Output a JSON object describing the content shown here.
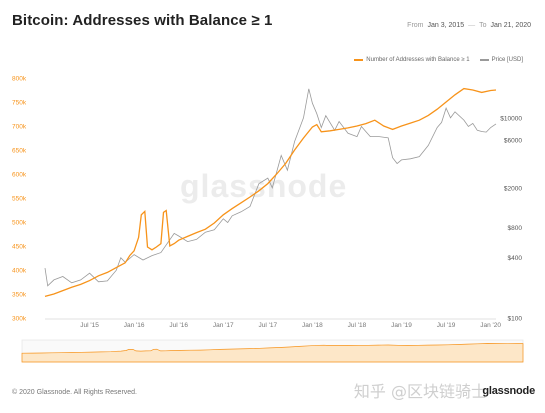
{
  "title": "Bitcoin: Addresses with Balance ≥ 1",
  "date_range": {
    "from_label": "From",
    "from_value": "Jan 3, 2015",
    "to_label": "To",
    "to_value": "Jan 21, 2020",
    "separator": "—"
  },
  "legend": [
    {
      "name": "Number of Addresses with Balance ≥ 1",
      "color": "#f7931a"
    },
    {
      "name": "Price [USD]",
      "color": "#9a9a9a"
    }
  ],
  "footer": "© 2020 Glassnode. All Rights Reserved.",
  "brand": "glassnode",
  "watermarks": {
    "background": "glassnode",
    "overlay": "知乎 @区块链骑士"
  },
  "chart_data": {
    "type": "line",
    "x_range": [
      2015.0,
      2020.06
    ],
    "x_ticks": [
      {
        "x": 2015.5,
        "label": "Jul '15"
      },
      {
        "x": 2016.0,
        "label": "Jan '16"
      },
      {
        "x": 2016.5,
        "label": "Jul '16"
      },
      {
        "x": 2017.0,
        "label": "Jan '17"
      },
      {
        "x": 2017.5,
        "label": "Jul '17"
      },
      {
        "x": 2018.0,
        "label": "Jan '18"
      },
      {
        "x": 2018.5,
        "label": "Jul '18"
      },
      {
        "x": 2019.0,
        "label": "Jan '19"
      },
      {
        "x": 2019.5,
        "label": "Jul '19"
      },
      {
        "x": 2020.0,
        "label": "Jan '20"
      }
    ],
    "y_left": {
      "range": [
        300000,
        800000
      ],
      "ticks": [
        {
          "v": 300000,
          "label": "300k"
        },
        {
          "v": 350000,
          "label": "350k"
        },
        {
          "v": 400000,
          "label": "400k"
        },
        {
          "v": 450000,
          "label": "450k"
        },
        {
          "v": 500000,
          "label": "500k"
        },
        {
          "v": 550000,
          "label": "550k"
        },
        {
          "v": 600000,
          "label": "600k"
        },
        {
          "v": 650000,
          "label": "650k"
        },
        {
          "v": 700000,
          "label": "700k"
        },
        {
          "v": 750000,
          "label": "750k"
        },
        {
          "v": 800000,
          "label": "800k"
        }
      ],
      "color": "#f7931a"
    },
    "y_right": {
      "scale": "log",
      "range": [
        100,
        25000
      ],
      "ticks": [
        {
          "v": 100,
          "label": "$100"
        },
        {
          "v": 400,
          "label": "$400"
        },
        {
          "v": 800,
          "label": "$800"
        },
        {
          "v": 2000,
          "label": "$2000"
        },
        {
          "v": 6000,
          "label": "$6000"
        },
        {
          "v": 10000,
          "label": "$10000"
        }
      ],
      "color": "#555555"
    },
    "grid": false,
    "legend_position": "top-right",
    "series": [
      {
        "name": "Number of Addresses with Balance ≥ 1",
        "axis": "left",
        "color": "#f7931a",
        "points": [
          [
            2015.0,
            345000
          ],
          [
            2015.1,
            350000
          ],
          [
            2015.2,
            357000
          ],
          [
            2015.3,
            364000
          ],
          [
            2015.4,
            370000
          ],
          [
            2015.5,
            378000
          ],
          [
            2015.6,
            388000
          ],
          [
            2015.7,
            395000
          ],
          [
            2015.8,
            405000
          ],
          [
            2015.9,
            415000
          ],
          [
            2015.95,
            430000
          ],
          [
            2016.0,
            440000
          ],
          [
            2016.05,
            468000
          ],
          [
            2016.08,
            515000
          ],
          [
            2016.12,
            522000
          ],
          [
            2016.15,
            448000
          ],
          [
            2016.2,
            442000
          ],
          [
            2016.25,
            448000
          ],
          [
            2016.3,
            455000
          ],
          [
            2016.33,
            520000
          ],
          [
            2016.36,
            524000
          ],
          [
            2016.4,
            450000
          ],
          [
            2016.45,
            455000
          ],
          [
            2016.5,
            462000
          ],
          [
            2016.6,
            470000
          ],
          [
            2016.7,
            478000
          ],
          [
            2016.8,
            485000
          ],
          [
            2016.9,
            498000
          ],
          [
            2017.0,
            515000
          ],
          [
            2017.1,
            528000
          ],
          [
            2017.2,
            540000
          ],
          [
            2017.3,
            552000
          ],
          [
            2017.4,
            565000
          ],
          [
            2017.5,
            580000
          ],
          [
            2017.6,
            600000
          ],
          [
            2017.7,
            622000
          ],
          [
            2017.8,
            650000
          ],
          [
            2017.9,
            675000
          ],
          [
            2018.0,
            698000
          ],
          [
            2018.05,
            703000
          ],
          [
            2018.1,
            688000
          ],
          [
            2018.2,
            690000
          ],
          [
            2018.3,
            693000
          ],
          [
            2018.4,
            696000
          ],
          [
            2018.5,
            700000
          ],
          [
            2018.6,
            705000
          ],
          [
            2018.7,
            712000
          ],
          [
            2018.8,
            700000
          ],
          [
            2018.9,
            693000
          ],
          [
            2019.0,
            700000
          ],
          [
            2019.1,
            706000
          ],
          [
            2019.2,
            712000
          ],
          [
            2019.3,
            722000
          ],
          [
            2019.4,
            735000
          ],
          [
            2019.5,
            750000
          ],
          [
            2019.6,
            765000
          ],
          [
            2019.7,
            778000
          ],
          [
            2019.8,
            775000
          ],
          [
            2019.9,
            770000
          ],
          [
            2020.0,
            774000
          ],
          [
            2020.06,
            775000
          ]
        ]
      },
      {
        "name": "Price [USD]",
        "axis": "right",
        "color": "#9a9a9a",
        "points": [
          [
            2015.0,
            315
          ],
          [
            2015.03,
            210
          ],
          [
            2015.1,
            240
          ],
          [
            2015.2,
            260
          ],
          [
            2015.3,
            225
          ],
          [
            2015.4,
            240
          ],
          [
            2015.5,
            280
          ],
          [
            2015.6,
            230
          ],
          [
            2015.7,
            235
          ],
          [
            2015.8,
            300
          ],
          [
            2015.85,
            400
          ],
          [
            2015.9,
            360
          ],
          [
            2016.0,
            430
          ],
          [
            2016.1,
            380
          ],
          [
            2016.2,
            420
          ],
          [
            2016.3,
            450
          ],
          [
            2016.45,
            700
          ],
          [
            2016.5,
            660
          ],
          [
            2016.6,
            580
          ],
          [
            2016.7,
            610
          ],
          [
            2016.8,
            720
          ],
          [
            2016.9,
            760
          ],
          [
            2017.0,
            980
          ],
          [
            2017.05,
            900
          ],
          [
            2017.1,
            1050
          ],
          [
            2017.2,
            1150
          ],
          [
            2017.3,
            1300
          ],
          [
            2017.4,
            2200
          ],
          [
            2017.5,
            2500
          ],
          [
            2017.55,
            2000
          ],
          [
            2017.65,
            4200
          ],
          [
            2017.72,
            3000
          ],
          [
            2017.8,
            5800
          ],
          [
            2017.9,
            10000
          ],
          [
            2017.96,
            19500
          ],
          [
            2018.0,
            14000
          ],
          [
            2018.05,
            11000
          ],
          [
            2018.1,
            8000
          ],
          [
            2018.15,
            10500
          ],
          [
            2018.25,
            7500
          ],
          [
            2018.3,
            9200
          ],
          [
            2018.4,
            7000
          ],
          [
            2018.5,
            6500
          ],
          [
            2018.55,
            8200
          ],
          [
            2018.65,
            6500
          ],
          [
            2018.75,
            6500
          ],
          [
            2018.85,
            6300
          ],
          [
            2018.9,
            4000
          ],
          [
            2018.95,
            3500
          ],
          [
            2019.0,
            3800
          ],
          [
            2019.1,
            3900
          ],
          [
            2019.2,
            4100
          ],
          [
            2019.3,
            5300
          ],
          [
            2019.4,
            8000
          ],
          [
            2019.45,
            9000
          ],
          [
            2019.5,
            12500
          ],
          [
            2019.55,
            10000
          ],
          [
            2019.6,
            11500
          ],
          [
            2019.7,
            9500
          ],
          [
            2019.75,
            8200
          ],
          [
            2019.8,
            8800
          ],
          [
            2019.85,
            7500
          ],
          [
            2019.9,
            7300
          ],
          [
            2019.95,
            7200
          ],
          [
            2020.0,
            8000
          ],
          [
            2020.06,
            8700
          ]
        ]
      }
    ]
  }
}
